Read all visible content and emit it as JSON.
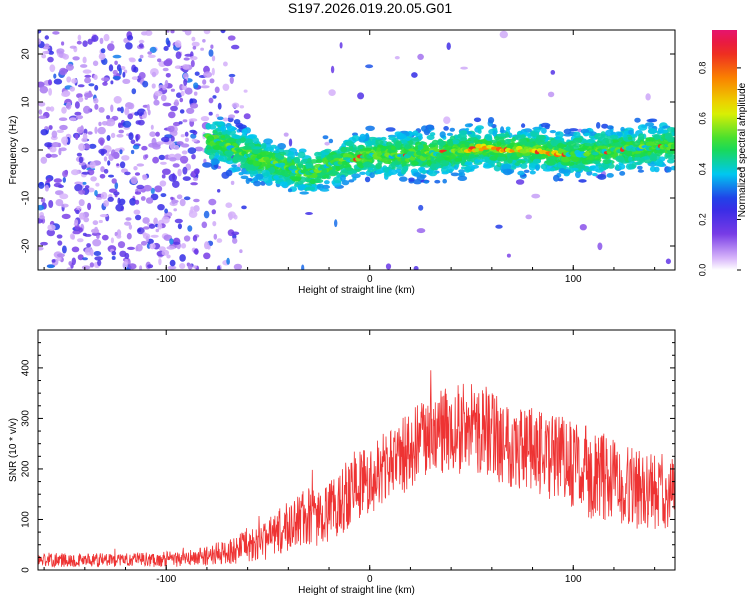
{
  "title": "S197.2026.019.20.05.G01",
  "chart_data": [
    {
      "type": "heatmap",
      "title": "S197.2026.019.20.05.G01",
      "xlabel": "Height of straight line (km)",
      "ylabel": "Frequency (Hz)",
      "xlim": [
        -163,
        150
      ],
      "ylim": [
        -25,
        25
      ],
      "xticks": [
        -100,
        0,
        100
      ],
      "yticks": [
        -20,
        -10,
        0,
        10,
        20
      ],
      "colorbar": {
        "label": "Normalized spectral amplitude",
        "range": [
          0,
          0.95
        ],
        "ticks": [
          "0.0",
          "0.2",
          "0.4",
          "0.6",
          "0.8"
        ],
        "colormap": "rainbow"
      },
      "ridge": {
        "description": "dominant frequency trace",
        "points": [
          {
            "x": -75,
            "y": 2
          },
          {
            "x": -60,
            "y": -1
          },
          {
            "x": -45,
            "y": -3
          },
          {
            "x": -30,
            "y": -5
          },
          {
            "x": -20,
            "y": -3
          },
          {
            "x": -10,
            "y": -2
          },
          {
            "x": 0,
            "y": -1
          },
          {
            "x": 20,
            "y": -1
          },
          {
            "x": 40,
            "y": -0.5
          },
          {
            "x": 55,
            "y": 0.5
          },
          {
            "x": 65,
            "y": 0
          },
          {
            "x": 80,
            "y": 0
          },
          {
            "x": 100,
            "y": -1
          },
          {
            "x": 120,
            "y": 0
          },
          {
            "x": 150,
            "y": 1
          }
        ]
      }
    },
    {
      "type": "line",
      "xlabel": "Height of straight line (km)",
      "ylabel": "SNR (10 * v/v)",
      "xlim": [
        -163,
        150
      ],
      "ylim": [
        0,
        475
      ],
      "xticks": [
        -100,
        0,
        100
      ],
      "yticks": [
        0,
        100,
        200,
        300,
        400
      ],
      "color": "#ee3333",
      "envelope": {
        "x": [
          -163,
          -120,
          -90,
          -70,
          -50,
          -35,
          -20,
          -10,
          0,
          20,
          40,
          55,
          70,
          90,
          110,
          130,
          150
        ],
        "mean": [
          20,
          20,
          22,
          35,
          60,
          100,
          110,
          160,
          180,
          240,
          280,
          280,
          250,
          220,
          190,
          160,
          150
        ],
        "spread": [
          14,
          14,
          16,
          25,
          40,
          60,
          60,
          80,
          70,
          80,
          90,
          90,
          90,
          90,
          90,
          80,
          70
        ]
      }
    }
  ]
}
